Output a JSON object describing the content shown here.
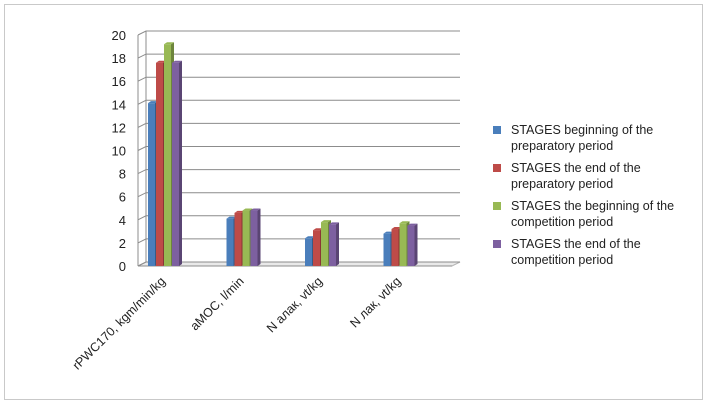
{
  "chart_data": {
    "type": "bar",
    "title": "",
    "xlabel": "",
    "ylabel": "",
    "ylim": [
      0,
      20
    ],
    "yticks": [
      0,
      2,
      4,
      6,
      8,
      10,
      12,
      14,
      16,
      18,
      20
    ],
    "grid": true,
    "legend_position": "right",
    "categories": [
      "rPWC170,  kgm/min/kg",
      "aMOC,   l/min",
      "N алак,    vt/kg",
      "N лак, vt/kg"
    ],
    "series": [
      {
        "name": "STAGES beginning of the preparatory period",
        "color": "#4a7ebb",
        "values": [
          14.1,
          4.1,
          2.4,
          2.8
        ]
      },
      {
        "name": "STAGES the end of the preparatory period",
        "color": "#be4b48",
        "values": [
          17.6,
          4.6,
          3.1,
          3.2
        ]
      },
      {
        "name": "STAGES the beginning of the competition period",
        "color": "#98b954",
        "values": [
          19.2,
          4.8,
          3.8,
          3.7
        ]
      },
      {
        "name": "STAGES the end of the competition period",
        "color": "#7d60a0",
        "values": [
          17.6,
          4.8,
          3.6,
          3.5
        ]
      }
    ]
  }
}
